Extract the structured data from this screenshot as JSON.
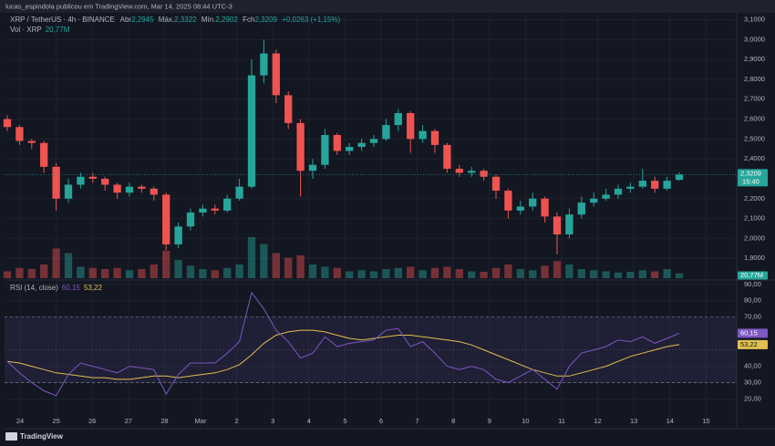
{
  "header": "lucas_espindola publicou em TradingView.com, Mar 14, 2025 08:44 UTC-3",
  "footer": "TradingView",
  "legend": {
    "symbol": "XRP / TetherUS · 4h · BINANCE",
    "open_label": "Abr",
    "open": "2,2945",
    "high_label": "Máx.",
    "high": "2,3322",
    "low_label": "Mín.",
    "low": "2,2902",
    "close_label": "Fch",
    "close": "2,3209",
    "change": "+0,0263 (+1,15%)",
    "volume_label": "Vol · XRP",
    "volume": "20,77M"
  },
  "tags": {
    "price": "2,3209",
    "countdown": "15:40",
    "volume": "20,77M",
    "rsi": "60,15",
    "rsi_ma": "53,22"
  },
  "chart_data": {
    "type": "candlestick",
    "dates": [
      "24",
      "25",
      "26",
      "27",
      "28",
      "Mar",
      "2",
      "3",
      "4",
      "5",
      "6",
      "7",
      "8",
      "9",
      "10",
      "11",
      "12",
      "13",
      "14",
      "15"
    ],
    "open": [
      2.6,
      2.56,
      2.49,
      2.48,
      2.36,
      2.2,
      2.27,
      2.31,
      2.3,
      2.27,
      2.23,
      2.26,
      2.25,
      2.22,
      1.97,
      2.06,
      2.13,
      2.15,
      2.14,
      2.2,
      2.26,
      2.82,
      2.93,
      2.72,
      2.58,
      2.34,
      2.37,
      2.52,
      2.44,
      2.46,
      2.48,
      2.5,
      2.57,
      2.63,
      2.5,
      2.54,
      2.47,
      2.35,
      2.33,
      2.34,
      2.31,
      2.24,
      2.14,
      2.16,
      2.2,
      2.11,
      2.02,
      2.12,
      2.18,
      2.2,
      2.22,
      2.25,
      2.26,
      2.29,
      2.25,
      2.2945
    ],
    "high": [
      2.62,
      2.57,
      2.5,
      2.49,
      2.38,
      2.3,
      2.33,
      2.33,
      2.31,
      2.28,
      2.28,
      2.27,
      2.26,
      2.23,
      2.08,
      2.15,
      2.17,
      2.17,
      2.22,
      2.3,
      2.9,
      3.0,
      2.95,
      2.74,
      2.6,
      2.4,
      2.55,
      2.53,
      2.48,
      2.5,
      2.52,
      2.6,
      2.65,
      2.64,
      2.57,
      2.55,
      2.48,
      2.37,
      2.36,
      2.35,
      2.32,
      2.25,
      2.19,
      2.23,
      2.21,
      2.13,
      2.15,
      2.21,
      2.23,
      2.25,
      2.27,
      2.28,
      2.35,
      2.31,
      2.31,
      2.3322
    ],
    "low": [
      2.54,
      2.47,
      2.45,
      2.33,
      2.14,
      2.18,
      2.25,
      2.28,
      2.24,
      2.2,
      2.21,
      2.23,
      2.19,
      1.94,
      1.95,
      2.04,
      2.11,
      2.12,
      2.13,
      2.19,
      2.25,
      2.78,
      2.68,
      2.55,
      2.21,
      2.3,
      2.35,
      2.42,
      2.42,
      2.44,
      2.46,
      2.49,
      2.54,
      2.43,
      2.48,
      2.43,
      2.33,
      2.31,
      2.31,
      2.29,
      2.2,
      2.1,
      2.12,
      2.14,
      2.08,
      1.92,
      2.0,
      2.1,
      2.16,
      2.19,
      2.2,
      2.23,
      2.25,
      2.23,
      2.24,
      2.2902
    ],
    "close": [
      2.56,
      2.49,
      2.48,
      2.36,
      2.2,
      2.27,
      2.31,
      2.3,
      2.27,
      2.23,
      2.26,
      2.25,
      2.22,
      1.97,
      2.06,
      2.13,
      2.15,
      2.14,
      2.2,
      2.26,
      2.82,
      2.93,
      2.72,
      2.58,
      2.34,
      2.37,
      2.52,
      2.44,
      2.46,
      2.48,
      2.5,
      2.57,
      2.63,
      2.5,
      2.54,
      2.47,
      2.35,
      2.33,
      2.34,
      2.31,
      2.24,
      2.14,
      2.16,
      2.2,
      2.11,
      2.02,
      2.12,
      2.18,
      2.2,
      2.22,
      2.25,
      2.26,
      2.29,
      2.25,
      2.29,
      2.3209
    ],
    "volume": [
      30,
      45,
      40,
      60,
      130,
      110,
      50,
      45,
      40,
      45,
      35,
      40,
      60,
      120,
      80,
      55,
      40,
      35,
      45,
      60,
      180,
      150,
      110,
      90,
      100,
      60,
      50,
      45,
      30,
      35,
      30,
      40,
      45,
      50,
      35,
      45,
      50,
      40,
      30,
      28,
      45,
      60,
      40,
      35,
      55,
      75,
      60,
      40,
      35,
      30,
      25,
      28,
      35,
      30,
      40,
      20.77
    ],
    "ylim": [
      1.8,
      3.13
    ],
    "yticks": [
      {
        "value": 1.9,
        "label": "1,9000"
      },
      {
        "value": 2.0,
        "label": "2,0000"
      },
      {
        "value": 2.1,
        "label": "2,1000"
      },
      {
        "value": 2.2,
        "label": "2,2000"
      },
      {
        "value": 2.4,
        "label": "2,4000"
      },
      {
        "value": 2.5,
        "label": "2,5000"
      },
      {
        "value": 2.6,
        "label": "2,6000"
      },
      {
        "value": 2.7,
        "label": "2,7000"
      },
      {
        "value": 2.8,
        "label": "2,8000"
      },
      {
        "value": 2.9,
        "label": "2,9000"
      },
      {
        "value": 3.0,
        "label": "3,0000"
      },
      {
        "value": 3.1,
        "label": "3,1000"
      }
    ],
    "up_color": "#26a69a",
    "down_color": "#ef5350",
    "rsi": {
      "title": "RSI (14, close)",
      "value_label": "60,15",
      "ma_label": "53,22",
      "values": [
        43,
        36,
        30,
        25,
        22,
        35,
        42,
        40,
        38,
        36,
        40,
        39,
        38,
        23,
        35,
        42,
        42,
        42,
        48,
        55,
        85,
        75,
        62,
        55,
        45,
        48,
        58,
        52,
        54,
        55,
        56,
        62,
        63,
        52,
        55,
        48,
        40,
        38,
        40,
        38,
        32,
        30,
        34,
        38,
        32,
        26,
        40,
        48,
        50,
        52,
        56,
        55,
        58,
        54,
        57,
        60.15
      ],
      "ma": [
        43,
        42,
        40,
        38,
        36,
        35,
        34,
        33,
        33,
        32,
        32,
        33,
        34,
        34,
        33,
        34,
        35,
        36,
        38,
        41,
        47,
        54,
        59,
        61,
        62,
        62,
        61,
        59,
        57,
        56,
        57,
        58,
        59,
        59,
        58,
        57,
        56,
        55,
        53,
        50,
        47,
        44,
        41,
        38,
        36,
        34,
        34,
        36,
        38,
        40,
        43,
        46,
        48,
        50,
        52,
        53.22
      ],
      "color": "#7e57c2",
      "ma_color": "#e0c04f",
      "ylim": [
        3,
        91
      ],
      "yticks": [
        {
          "value": 20,
          "label": "20,00"
        },
        {
          "value": 30,
          "label": "30,00"
        },
        {
          "value": 40,
          "label": "40,00"
        },
        {
          "value": 70,
          "label": "70,00"
        },
        {
          "value": 80,
          "label": "80,00"
        },
        {
          "value": 90,
          "label": "90,00"
        }
      ],
      "bands": [
        30,
        70
      ]
    }
  }
}
